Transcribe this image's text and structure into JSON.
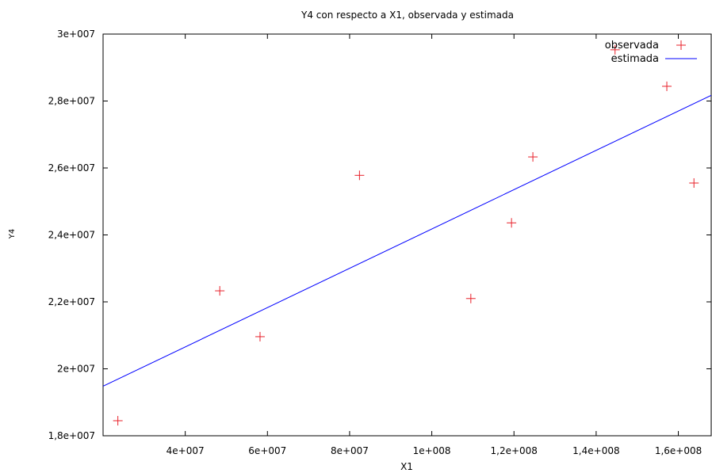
{
  "chart_data": {
    "type": "scatter",
    "title": "Y4 con respecto a X1, observada y estimada",
    "xlabel": "X1",
    "ylabel": "Y4",
    "xlim": [
      20000000,
      168000000
    ],
    "ylim": [
      18000000,
      30000000
    ],
    "xticks": [
      {
        "value": 40000000,
        "label": "4e+007"
      },
      {
        "value": 60000000,
        "label": "6e+007"
      },
      {
        "value": 80000000,
        "label": "8e+007"
      },
      {
        "value": 100000000,
        "label": "1e+008"
      },
      {
        "value": 120000000,
        "label": "1,2e+008"
      },
      {
        "value": 140000000,
        "label": "1,4e+008"
      },
      {
        "value": 160000000,
        "label": "1,6e+008"
      }
    ],
    "yticks": [
      {
        "value": 18000000,
        "label": "1,8e+007"
      },
      {
        "value": 20000000,
        "label": "2e+007"
      },
      {
        "value": 22000000,
        "label": "2,2e+007"
      },
      {
        "value": 24000000,
        "label": "2,4e+007"
      },
      {
        "value": 26000000,
        "label": "2,6e+007"
      },
      {
        "value": 28000000,
        "label": "2,8e+007"
      },
      {
        "value": 30000000,
        "label": "3e+007"
      }
    ],
    "grid": false,
    "legend_position": "top-right",
    "series": [
      {
        "name": "observada",
        "kind": "points",
        "marker": "plus",
        "color": "#e8202a",
        "points": [
          [
            23600000,
            18450000
          ],
          [
            48400000,
            22330000
          ],
          [
            58200000,
            20960000
          ],
          [
            82400000,
            25780000
          ],
          [
            109500000,
            22100000
          ],
          [
            119400000,
            24360000
          ],
          [
            124600000,
            26330000
          ],
          [
            144600000,
            29530000
          ],
          [
            157200000,
            28440000
          ],
          [
            163800000,
            25550000
          ]
        ]
      },
      {
        "name": "estimada",
        "kind": "line",
        "color": "#0000ff",
        "points": [
          [
            20000000,
            19480000
          ],
          [
            168000000,
            28170000
          ]
        ]
      }
    ]
  }
}
